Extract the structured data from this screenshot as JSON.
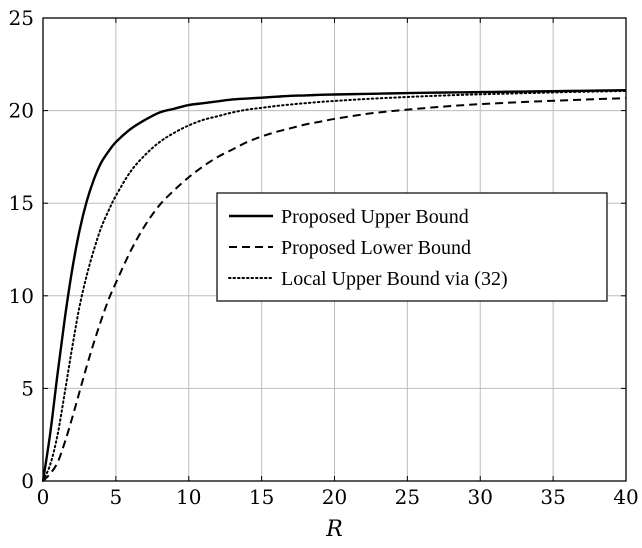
{
  "chart_data": {
    "type": "line",
    "title": "",
    "xlabel": "R",
    "ylabel": "",
    "xlim": [
      0,
      40
    ],
    "ylim": [
      0,
      25
    ],
    "xticks": [
      0,
      5,
      10,
      15,
      20,
      25,
      30,
      35,
      40
    ],
    "yticks": [
      0,
      5,
      10,
      15,
      20,
      25
    ],
    "grid": true,
    "legend_position": "center-right",
    "x": [
      0,
      0.5,
      1,
      1.5,
      2,
      2.5,
      3,
      3.5,
      4,
      4.5,
      5,
      6,
      7,
      8,
      9,
      10,
      11,
      12,
      13,
      14,
      15,
      16,
      17,
      18,
      19,
      20,
      22,
      24,
      26,
      28,
      30,
      32,
      34,
      36,
      38,
      40
    ],
    "series": [
      {
        "name": "Proposed Upper Bound",
        "style": "solid",
        "color": "#000000",
        "values": [
          0,
          2.6,
          5.8,
          8.8,
          11.4,
          13.5,
          15.1,
          16.3,
          17.2,
          17.8,
          18.3,
          19.0,
          19.5,
          19.9,
          20.1,
          20.3,
          20.4,
          20.5,
          20.6,
          20.65,
          20.7,
          20.75,
          20.8,
          20.82,
          20.85,
          20.87,
          20.9,
          20.93,
          20.96,
          20.98,
          21.0,
          21.02,
          21.04,
          21.06,
          21.08,
          21.1
        ]
      },
      {
        "name": "Proposed Lower Bound",
        "style": "dashed",
        "color": "#000000",
        "values": [
          0,
          0.4,
          1.0,
          2.1,
          3.4,
          4.8,
          6.2,
          7.5,
          8.7,
          9.8,
          10.7,
          12.4,
          13.8,
          14.9,
          15.7,
          16.4,
          17.0,
          17.5,
          17.9,
          18.3,
          18.6,
          18.85,
          19.05,
          19.25,
          19.4,
          19.55,
          19.8,
          19.98,
          20.12,
          20.25,
          20.35,
          20.43,
          20.5,
          20.56,
          20.62,
          20.67
        ]
      },
      {
        "name": "Local Upper Bound via (32)",
        "style": "dotted",
        "color": "#000000",
        "values": [
          0,
          0.9,
          2.5,
          4.8,
          7.2,
          9.4,
          11.1,
          12.5,
          13.7,
          14.6,
          15.4,
          16.7,
          17.6,
          18.3,
          18.8,
          19.2,
          19.5,
          19.7,
          19.9,
          20.05,
          20.15,
          20.25,
          20.33,
          20.4,
          20.47,
          20.52,
          20.62,
          20.7,
          20.77,
          20.83,
          20.88,
          20.92,
          20.96,
          21.0,
          21.03,
          21.06
        ]
      }
    ]
  }
}
